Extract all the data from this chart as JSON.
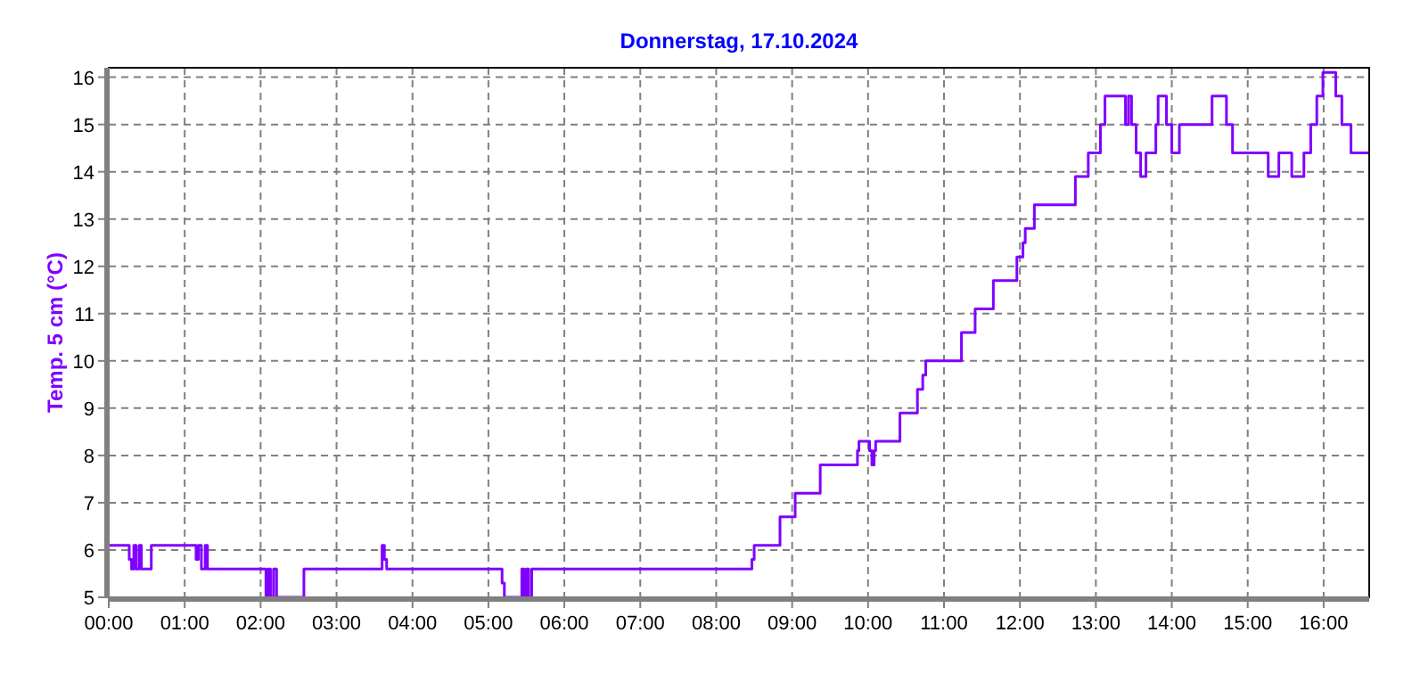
{
  "chart_data": {
    "type": "step",
    "title": "Donnerstag, 17.10.2024",
    "ylabel": "Temp. 5 cm (°C)",
    "x": [
      0,
      0.27,
      0.3,
      0.33,
      0.36,
      0.4,
      0.43,
      0.56,
      1.15,
      1.18,
      1.22,
      1.27,
      1.3,
      2.07,
      2.1,
      2.13,
      2.17,
      2.21,
      2.57,
      3.6,
      3.63,
      3.66,
      5.18,
      5.21,
      5.44,
      5.47,
      5.5,
      5.53,
      5.57,
      8.47,
      8.5,
      8.84,
      9.04,
      9.37,
      9.86,
      9.88,
      10.02,
      10.05,
      10.08,
      10.1,
      10.42,
      10.65,
      10.72,
      10.76,
      11.23,
      11.41,
      11.65,
      11.96,
      12.04,
      12.07,
      12.19,
      12.73,
      12.9,
      13.06,
      13.12,
      13.39,
      13.43,
      13.47,
      13.53,
      13.59,
      13.66,
      13.79,
      13.82,
      13.93,
      14.0,
      14.1,
      14.53,
      14.72,
      14.8,
      15.27,
      15.41,
      15.58,
      15.74,
      15.83,
      15.91,
      15.99,
      16.16,
      16.24,
      16.36,
      16.59
    ],
    "series": [
      {
        "color": "#8000ff",
        "values": [
          6.1,
          5.8,
          5.6,
          6.1,
          5.6,
          6.1,
          5.6,
          6.1,
          5.8,
          6.1,
          5.6,
          6.1,
          5.6,
          5.0,
          5.6,
          5.0,
          5.6,
          5.0,
          5.6,
          6.1,
          5.8,
          5.6,
          5.3,
          5.0,
          5.6,
          5.0,
          5.6,
          5.0,
          5.6,
          5.8,
          6.1,
          6.7,
          7.2,
          7.8,
          8.1,
          8.3,
          8.1,
          7.8,
          8.1,
          8.3,
          8.9,
          9.4,
          9.7,
          10.0,
          10.6,
          11.1,
          11.7,
          12.2,
          12.5,
          12.8,
          13.3,
          13.9,
          14.4,
          15.0,
          15.6,
          15.0,
          15.6,
          15.0,
          14.4,
          13.9,
          14.4,
          15.0,
          15.6,
          15.0,
          14.4,
          15.0,
          15.6,
          15.0,
          14.4,
          13.9,
          14.4,
          13.9,
          14.4,
          15.0,
          15.6,
          16.1,
          15.6,
          15.0,
          14.4,
          14.4
        ]
      }
    ],
    "xlim": [
      0,
      16.6
    ],
    "xticks": [
      {
        "value": 0,
        "label": "00:00"
      },
      {
        "value": 1,
        "label": "01:00"
      },
      {
        "value": 2,
        "label": "02:00"
      },
      {
        "value": 3,
        "label": "03:00"
      },
      {
        "value": 4,
        "label": "04:00"
      },
      {
        "value": 5,
        "label": "05:00"
      },
      {
        "value": 6,
        "label": "06:00"
      },
      {
        "value": 7,
        "label": "07:00"
      },
      {
        "value": 8,
        "label": "08:00"
      },
      {
        "value": 9,
        "label": "09:00"
      },
      {
        "value": 10,
        "label": "10:00"
      },
      {
        "value": 11,
        "label": "11:00"
      },
      {
        "value": 12,
        "label": "12:00"
      },
      {
        "value": 13,
        "label": "13:00"
      },
      {
        "value": 14,
        "label": "14:00"
      },
      {
        "value": 15,
        "label": "15:00"
      },
      {
        "value": 16,
        "label": "16:00"
      }
    ],
    "ylim": [
      5,
      16.2
    ],
    "yticks": [
      5,
      6,
      7,
      8,
      9,
      10,
      11,
      12,
      13,
      14,
      15,
      16
    ],
    "grid": true,
    "line_style": "solid"
  }
}
